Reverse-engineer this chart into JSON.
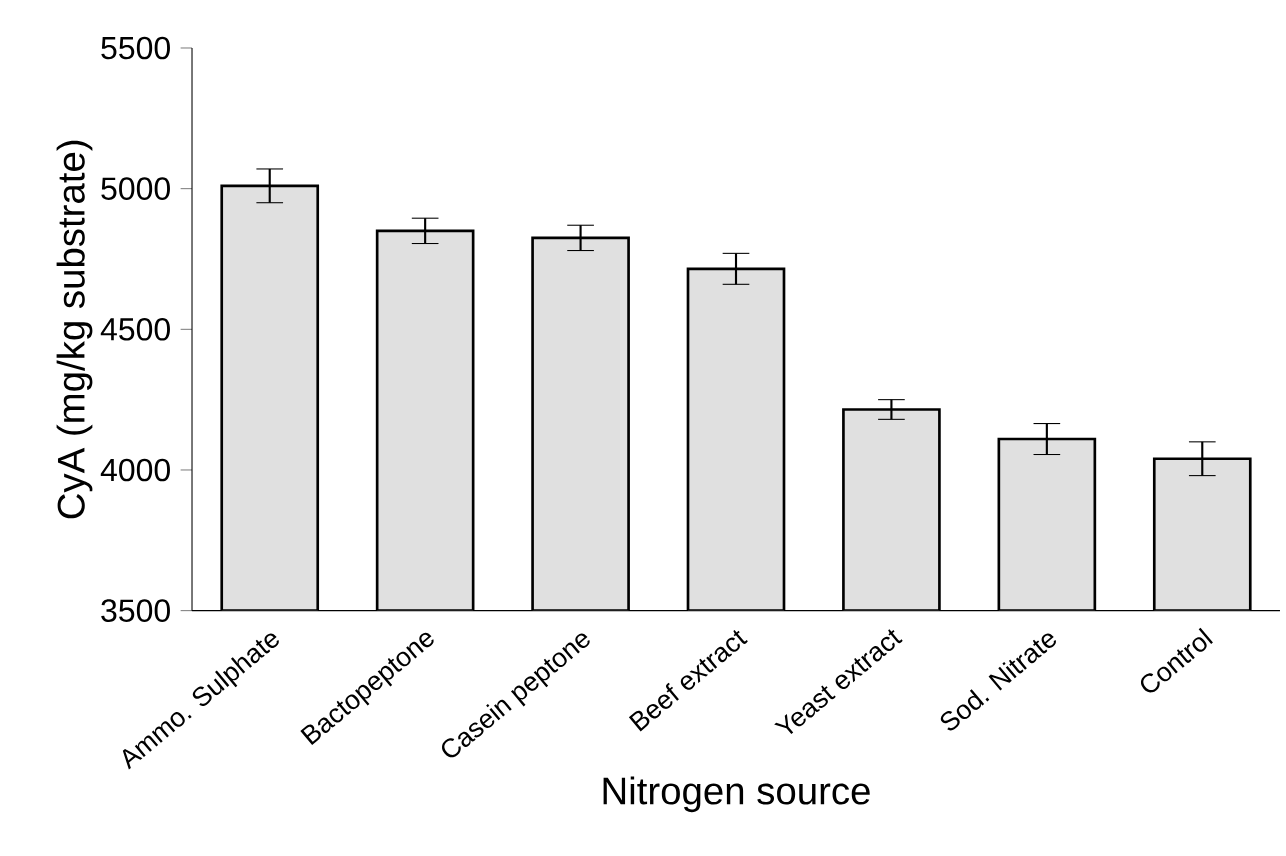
{
  "chart_data": {
    "type": "bar",
    "xlabel": "Nitrogen source",
    "ylabel": "CyA (mg/kg substrate)",
    "categories": [
      "Ammo. Sulphate",
      "Bactopeptone",
      "Casein peptone",
      "Beef extract",
      "Yeast extract",
      "Sod. Nitrate",
      "Control"
    ],
    "values": [
      5010,
      4850,
      4825,
      4715,
      4215,
      4110,
      4040
    ],
    "errors": [
      60,
      45,
      45,
      55,
      35,
      55,
      60
    ],
    "color": "#e0e0e0",
    "ylim": [
      3500,
      5500
    ],
    "yticks": [
      3500,
      4000,
      4500,
      5000,
      5500
    ]
  }
}
